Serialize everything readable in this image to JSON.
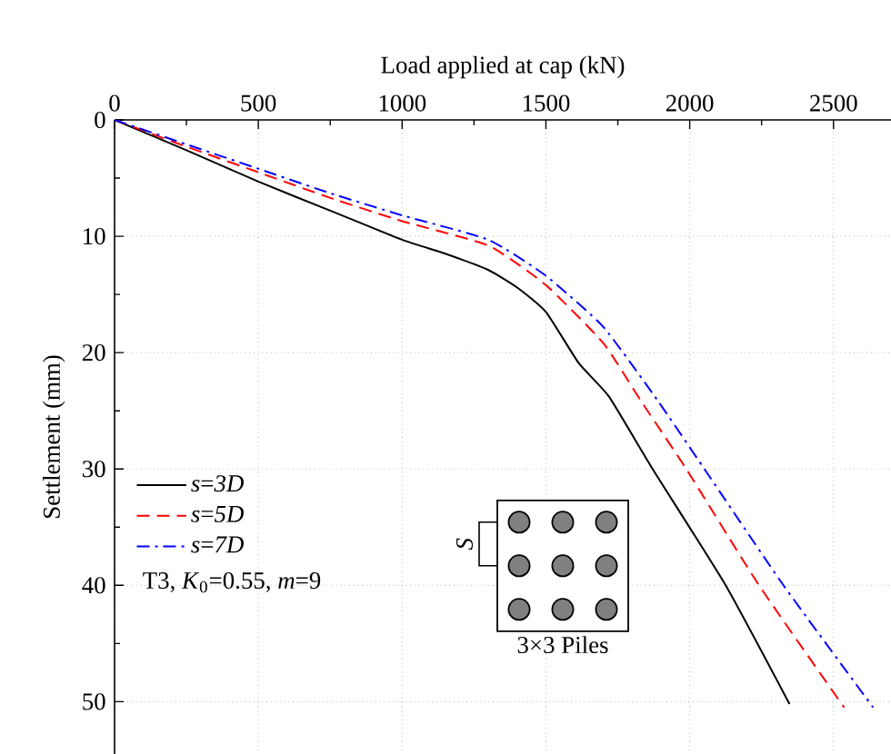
{
  "chart_data": {
    "type": "line",
    "xlabel": "Load applied at cap (kN)",
    "ylabel": "Settlement (mm)",
    "xlim": [
      0,
      2700
    ],
    "xticks": [
      0,
      500,
      1000,
      1500,
      2000,
      2500
    ],
    "ylim": [
      54.5,
      0
    ],
    "yticks": [
      0,
      10,
      20,
      30,
      40,
      50
    ],
    "grid": true,
    "legend": "bottom left",
    "marker": "none",
    "series": [
      {
        "name": "*s*=*3D*",
        "color": "#000000",
        "line_style": "solid",
        "x": [
          0,
          250,
          500,
          750,
          1000,
          1150,
          1300,
          1400,
          1500,
          1614,
          1720,
          1871,
          2125,
          2347
        ],
        "values": [
          0,
          2.6,
          5.3,
          7.8,
          10.3,
          11.5,
          12.9,
          14.4,
          16.5,
          20.9,
          23.8,
          30,
          40,
          50.2
        ]
      },
      {
        "name": "*s*=*5D*",
        "color": "#ff0000",
        "line_style": "dashed",
        "x": [
          0,
          250,
          500,
          750,
          1000,
          1300,
          1500,
          1700,
          1829,
          1988,
          2241,
          2537
        ],
        "values": [
          0,
          2.3,
          4.5,
          6.7,
          8.7,
          10.8,
          14.2,
          19.2,
          24.1,
          30,
          40,
          50.5
        ]
      },
      {
        "name": "*s*=*7D*",
        "color": "#0000ff",
        "line_style": "dashdotted",
        "x": [
          0,
          250,
          500,
          750,
          1000,
          1300,
          1500,
          1700,
          1888,
          2051,
          2326,
          2638
        ],
        "values": [
          0,
          2.1,
          4.2,
          6.3,
          8.2,
          10.3,
          13.4,
          17.8,
          24.1,
          30,
          40,
          50.5
        ]
      }
    ],
    "annotations": [
      "T3, *K*$_{0}$=0.55, *m*=9",
      "*S*",
      "3×3 Piles"
    ]
  }
}
